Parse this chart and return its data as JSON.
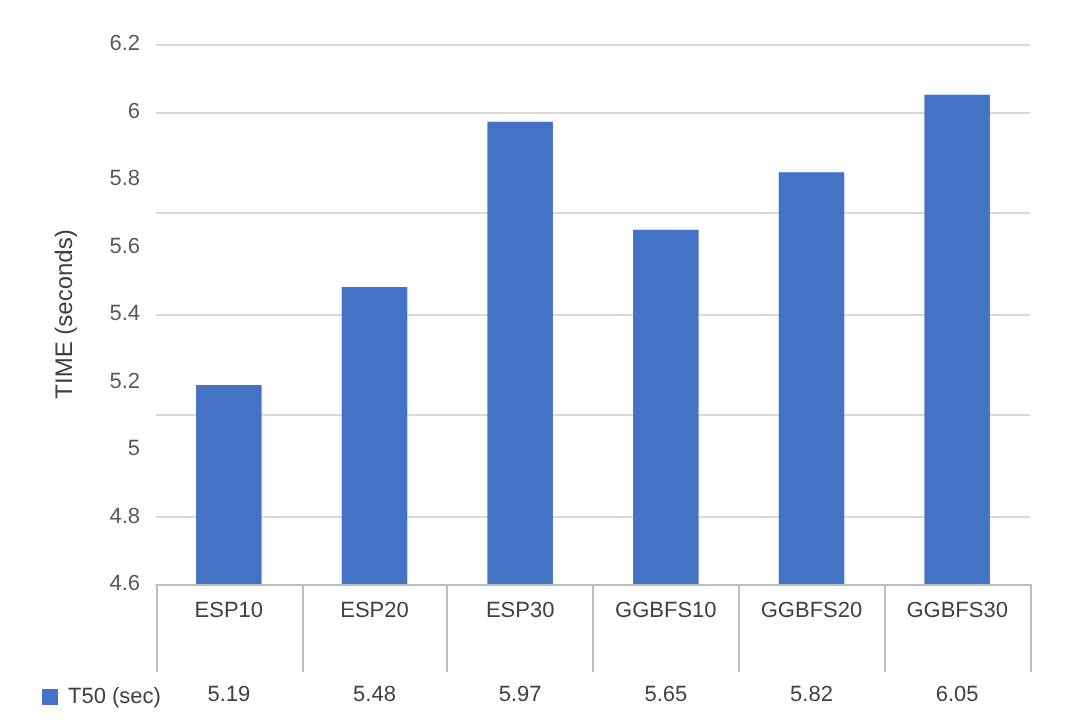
{
  "chart_data": {
    "type": "bar",
    "ylabel": "TIME (seconds)",
    "categories": [
      "ESP10",
      "ESP20",
      "ESP30",
      "GGBFS10",
      "GGBFS20",
      "GGBFS30"
    ],
    "series": [
      {
        "name": "T50 (sec)",
        "color": "#4472c4",
        "values": [
          5.19,
          5.48,
          5.97,
          5.65,
          5.82,
          6.05
        ]
      }
    ],
    "ylim": [
      4.6,
      6.2
    ],
    "yticks": [
      4.6,
      4.8,
      5,
      5.2,
      5.4,
      5.6,
      5.8,
      6,
      6.2
    ],
    "grid": "y",
    "legend": "bottom left",
    "data_labels": true
  }
}
